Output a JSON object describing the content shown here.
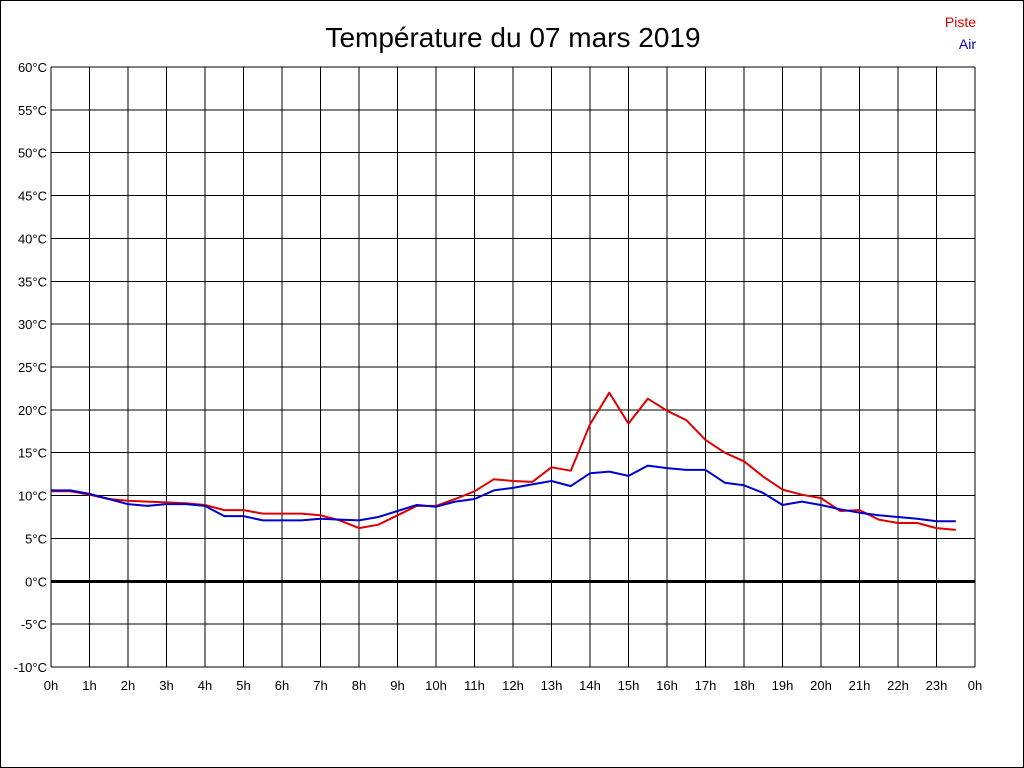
{
  "chart_data": {
    "type": "line",
    "title": "Température du 07 mars 2019",
    "xlabel": "",
    "ylabel": "",
    "xlim": [
      0,
      24
    ],
    "ylim": [
      -10,
      60
    ],
    "grid": true,
    "legend_position": "top-right",
    "y_ticks": [
      60,
      55,
      50,
      45,
      40,
      35,
      30,
      25,
      20,
      15,
      10,
      5,
      0,
      -5,
      -10
    ],
    "y_tick_labels": [
      "60°C",
      "55°C",
      "50°C",
      "45°C",
      "40°C",
      "35°C",
      "30°C",
      "25°C",
      "20°C",
      "15°C",
      "10°C",
      "5°C",
      "0°C",
      "-5°C",
      "-10°C"
    ],
    "x_ticks": [
      0,
      1,
      2,
      3,
      4,
      5,
      6,
      7,
      8,
      9,
      10,
      11,
      12,
      13,
      14,
      15,
      16,
      17,
      18,
      19,
      20,
      21,
      22,
      23,
      24
    ],
    "x_tick_labels": [
      "0h",
      "1h",
      "2h",
      "3h",
      "4h",
      "5h",
      "6h",
      "7h",
      "8h",
      "9h",
      "10h",
      "11h",
      "12h",
      "13h",
      "14h",
      "15h",
      "16h",
      "17h",
      "18h",
      "19h",
      "20h",
      "21h",
      "22h",
      "23h",
      "0h"
    ],
    "x": [
      0,
      0.5,
      1,
      1.5,
      2,
      2.5,
      3,
      3.5,
      4,
      4.5,
      5,
      5.5,
      6,
      6.5,
      7,
      7.5,
      8,
      8.5,
      9,
      9.5,
      10,
      10.5,
      11,
      11.5,
      12,
      12.5,
      13,
      13.5,
      14,
      14.5,
      15,
      15.5,
      16,
      16.5,
      17,
      17.5,
      18,
      18.5,
      19,
      19.5,
      20,
      20.5,
      21,
      21.5,
      22,
      22.5,
      23,
      23.5
    ],
    "series": [
      {
        "name": "Piste",
        "color": "#dd0000",
        "values": [
          10.5,
          10.5,
          10.1,
          9.6,
          9.4,
          9.3,
          9.2,
          9.1,
          8.9,
          8.3,
          8.3,
          7.9,
          7.9,
          7.9,
          7.7,
          7.1,
          6.2,
          6.6,
          7.7,
          8.8,
          8.8,
          9.6,
          10.5,
          11.9,
          11.7,
          11.6,
          13.3,
          12.9,
          18.3,
          22.0,
          18.4,
          21.3,
          19.9,
          18.8,
          16.5,
          15.0,
          14.0,
          12.2,
          10.7,
          10.1,
          9.7,
          8.2,
          8.3,
          7.2,
          6.8,
          6.8,
          6.2,
          6.0
        ]
      },
      {
        "name": "Air",
        "color": "#0000cc",
        "values": [
          10.6,
          10.6,
          10.2,
          9.6,
          9.0,
          8.8,
          9.0,
          9.0,
          8.8,
          7.6,
          7.6,
          7.1,
          7.1,
          7.1,
          7.3,
          7.2,
          7.1,
          7.5,
          8.2,
          8.9,
          8.7,
          9.3,
          9.6,
          10.6,
          10.9,
          11.3,
          11.7,
          11.1,
          12.6,
          12.8,
          12.3,
          13.5,
          13.2,
          13.0,
          13.0,
          11.5,
          11.2,
          10.3,
          8.9,
          9.3,
          8.9,
          8.4,
          8.0,
          7.7,
          7.5,
          7.3,
          7.0,
          7.0
        ]
      }
    ]
  }
}
